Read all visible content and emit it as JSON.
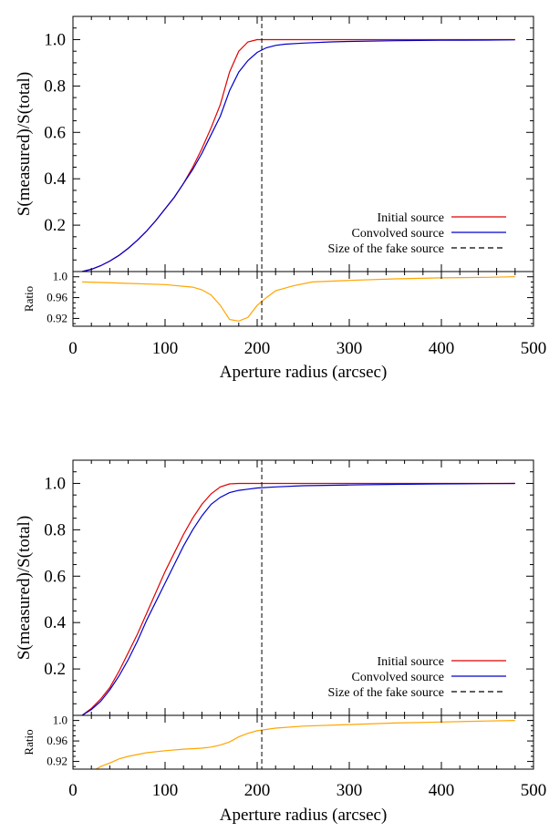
{
  "chart_data": [
    {
      "type": "line",
      "ylabel": "S(measured)/S(total)",
      "xlabel": "Aperture radius (arcsec)",
      "xlim": [
        0,
        500
      ],
      "ylim": [
        0,
        1.1
      ],
      "xticks": [
        "0",
        "100",
        "200",
        "300",
        "400",
        "500"
      ],
      "yticks": [
        "0.2",
        "0.4",
        "0.6",
        "0.8",
        "1.0"
      ],
      "series": [
        {
          "name": "Initial source",
          "color": "#e00000",
          "x": [
            10,
            20,
            30,
            40,
            50,
            60,
            70,
            80,
            90,
            100,
            110,
            120,
            130,
            140,
            150,
            160,
            170,
            180,
            190,
            200,
            210,
            220,
            250,
            300,
            350,
            400,
            450,
            480
          ],
          "y": [
            0.0,
            0.01,
            0.025,
            0.045,
            0.07,
            0.1,
            0.135,
            0.175,
            0.22,
            0.27,
            0.32,
            0.38,
            0.45,
            0.53,
            0.62,
            0.72,
            0.86,
            0.95,
            0.99,
            1.0,
            1.0,
            1.0,
            1.0,
            1.0,
            1.0,
            1.0,
            1.0,
            1.0
          ]
        },
        {
          "name": "Convolved source",
          "color": "#0000cc",
          "x": [
            10,
            20,
            30,
            40,
            50,
            60,
            70,
            80,
            90,
            100,
            110,
            120,
            130,
            140,
            150,
            160,
            170,
            180,
            190,
            200,
            210,
            220,
            230,
            250,
            280,
            300,
            350,
            400,
            450,
            480
          ],
          "y": [
            0.0,
            0.01,
            0.025,
            0.045,
            0.07,
            0.1,
            0.135,
            0.175,
            0.22,
            0.27,
            0.32,
            0.38,
            0.44,
            0.51,
            0.59,
            0.67,
            0.78,
            0.86,
            0.91,
            0.945,
            0.965,
            0.975,
            0.98,
            0.985,
            0.99,
            0.992,
            0.995,
            0.997,
            0.998,
            0.999
          ]
        },
        {
          "name": "Size of the fake source",
          "color": "#000000",
          "dashed": true,
          "vline": 205
        }
      ],
      "legend_position": "bottom-right",
      "ratio": {
        "ylabel": "Ratio",
        "ylim": [
          0.905,
          1.01
        ],
        "yticks": [
          "0.92",
          "0.96",
          "1.0"
        ],
        "tick_values": [
          0.92,
          0.96,
          1.0
        ],
        "color": "#ffa500",
        "x": [
          10,
          50,
          100,
          130,
          140,
          150,
          160,
          170,
          180,
          190,
          200,
          210,
          220,
          240,
          260,
          300,
          350,
          400,
          450,
          480
        ],
        "y": [
          0.99,
          0.988,
          0.985,
          0.98,
          0.975,
          0.965,
          0.945,
          0.918,
          0.915,
          0.922,
          0.945,
          0.96,
          0.973,
          0.983,
          0.99,
          0.993,
          0.996,
          0.998,
          0.999,
          1.0
        ]
      }
    },
    {
      "type": "line",
      "ylabel": "S(measured)/S(total)",
      "xlabel": "Aperture radius (arcsec)",
      "xlim": [
        0,
        500
      ],
      "ylim": [
        0,
        1.1
      ],
      "xticks": [
        "0",
        "100",
        "200",
        "300",
        "400",
        "500"
      ],
      "yticks": [
        "0.2",
        "0.4",
        "0.6",
        "0.8",
        "1.0"
      ],
      "series": [
        {
          "name": "Initial source",
          "color": "#e00000",
          "x": [
            10,
            20,
            30,
            40,
            50,
            60,
            70,
            80,
            90,
            100,
            110,
            120,
            130,
            140,
            150,
            160,
            170,
            180,
            190,
            200,
            250,
            300,
            350,
            400,
            450,
            480
          ],
          "y": [
            0.0,
            0.03,
            0.07,
            0.12,
            0.19,
            0.27,
            0.35,
            0.44,
            0.53,
            0.62,
            0.7,
            0.78,
            0.85,
            0.91,
            0.955,
            0.985,
            0.998,
            1.0,
            1.0,
            1.0,
            1.0,
            1.0,
            1.0,
            1.0,
            1.0,
            1.0
          ]
        },
        {
          "name": "Convolved source",
          "color": "#0000cc",
          "x": [
            10,
            20,
            30,
            40,
            50,
            60,
            70,
            80,
            90,
            100,
            110,
            120,
            130,
            140,
            150,
            160,
            170,
            180,
            190,
            200,
            220,
            250,
            300,
            350,
            400,
            450,
            480
          ],
          "y": [
            0.0,
            0.025,
            0.06,
            0.11,
            0.17,
            0.24,
            0.32,
            0.41,
            0.49,
            0.57,
            0.65,
            0.73,
            0.8,
            0.86,
            0.91,
            0.94,
            0.96,
            0.97,
            0.975,
            0.98,
            0.985,
            0.99,
            0.993,
            0.996,
            0.998,
            0.999,
            1.0
          ]
        },
        {
          "name": "Size of the fake source",
          "color": "#000000",
          "dashed": true,
          "vline": 205
        }
      ],
      "legend_position": "bottom-right",
      "ratio": {
        "ylabel": "Ratio",
        "ylim": [
          0.905,
          1.01
        ],
        "yticks": [
          "0.92",
          "0.96",
          "1.0"
        ],
        "tick_values": [
          0.92,
          0.96,
          1.0
        ],
        "color": "#ffa500",
        "x": [
          25,
          30,
          40,
          50,
          60,
          80,
          100,
          120,
          140,
          150,
          160,
          170,
          180,
          190,
          200,
          220,
          250,
          300,
          350,
          400,
          450,
          480
        ],
        "y": [
          0.905,
          0.91,
          0.917,
          0.925,
          0.93,
          0.937,
          0.941,
          0.944,
          0.946,
          0.948,
          0.952,
          0.958,
          0.968,
          0.975,
          0.98,
          0.985,
          0.989,
          0.992,
          0.995,
          0.997,
          0.999,
          1.0
        ]
      }
    }
  ]
}
